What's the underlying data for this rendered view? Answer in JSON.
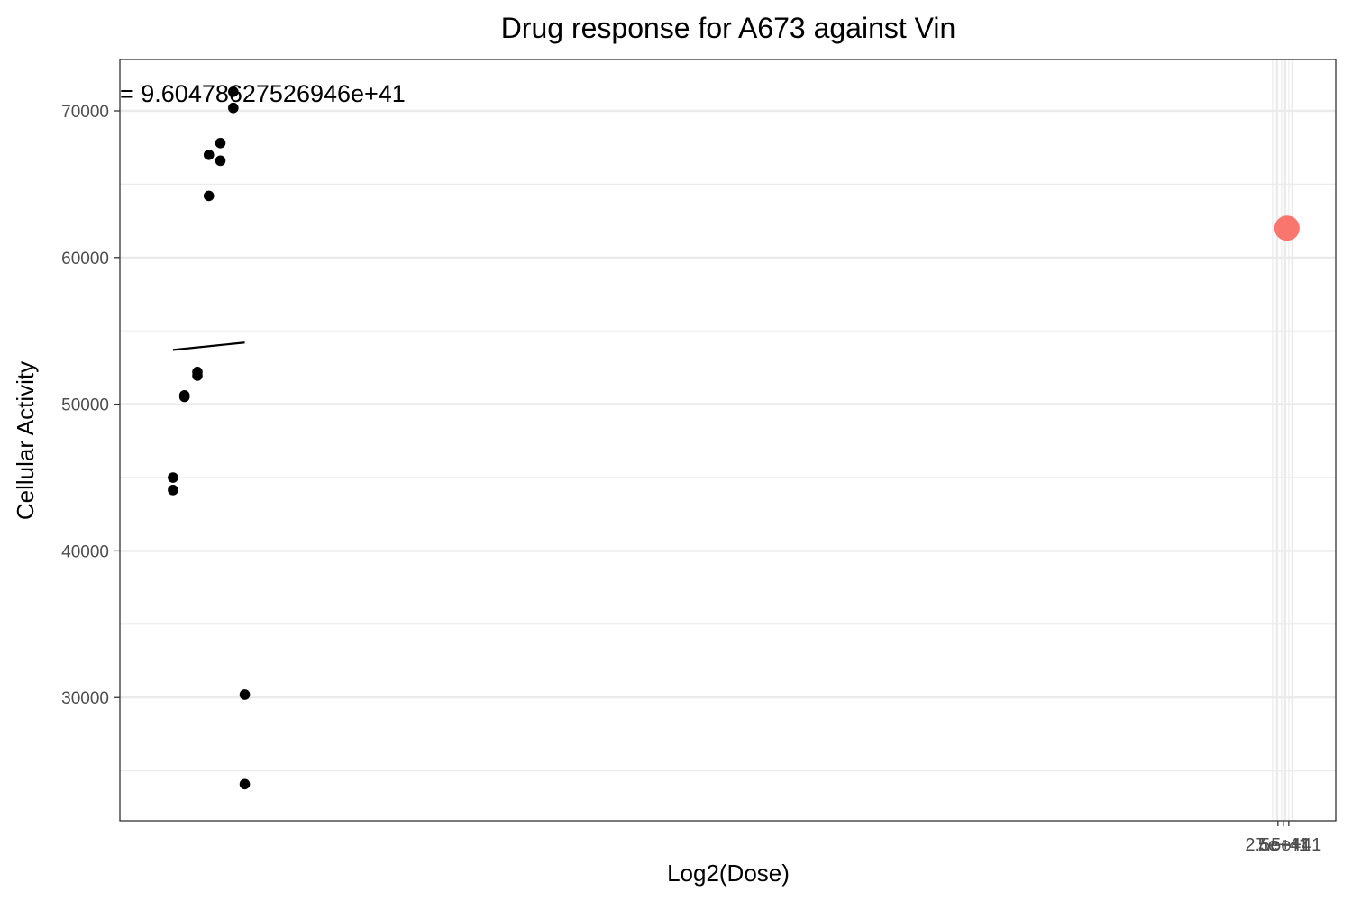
{
  "chart_data": {
    "type": "scatter",
    "title": "Drug response for A673 against Vin",
    "xlabel": "Log2(Dose)",
    "ylabel": "Cellular Activity",
    "ylim": [
      21600,
      73500
    ],
    "xlim": [
      -0.37,
      8.1
    ],
    "y_ticks": [
      30000,
      40000,
      50000,
      60000,
      70000
    ],
    "y_tick_labels": [
      "30000",
      "40000",
      "50000",
      "60000",
      "70000"
    ],
    "x_tick_labels": [
      "2.5e+41",
      "5e+41",
      "7.5e+41"
    ],
    "grid": true,
    "annotation": "= 9.60478627526946e+41",
    "points": [
      {
        "x": 0.0,
        "y": 45000
      },
      {
        "x": 0.0,
        "y": 44150
      },
      {
        "x": 0.08,
        "y": 50600
      },
      {
        "x": 0.08,
        "y": 50500
      },
      {
        "x": 0.17,
        "y": 52200
      },
      {
        "x": 0.17,
        "y": 51950
      },
      {
        "x": 0.25,
        "y": 67000
      },
      {
        "x": 0.25,
        "y": 64200
      },
      {
        "x": 0.33,
        "y": 67800
      },
      {
        "x": 0.33,
        "y": 66600
      },
      {
        "x": 0.42,
        "y": 71300
      },
      {
        "x": 0.42,
        "y": 70200
      },
      {
        "x": 0.5,
        "y": 30200
      },
      {
        "x": 0.5,
        "y": 24100
      }
    ],
    "fit_line": [
      {
        "x": 0.0,
        "y": 53700
      },
      {
        "x": 0.5,
        "y": 54200
      }
    ],
    "highlight_point": {
      "x": 7.76,
      "y": 62000,
      "color": "#F8766D"
    },
    "colors": {
      "points": "#000000",
      "highlight": "#F8766D",
      "grid": "#ebebeb",
      "frame": "#333333"
    }
  }
}
